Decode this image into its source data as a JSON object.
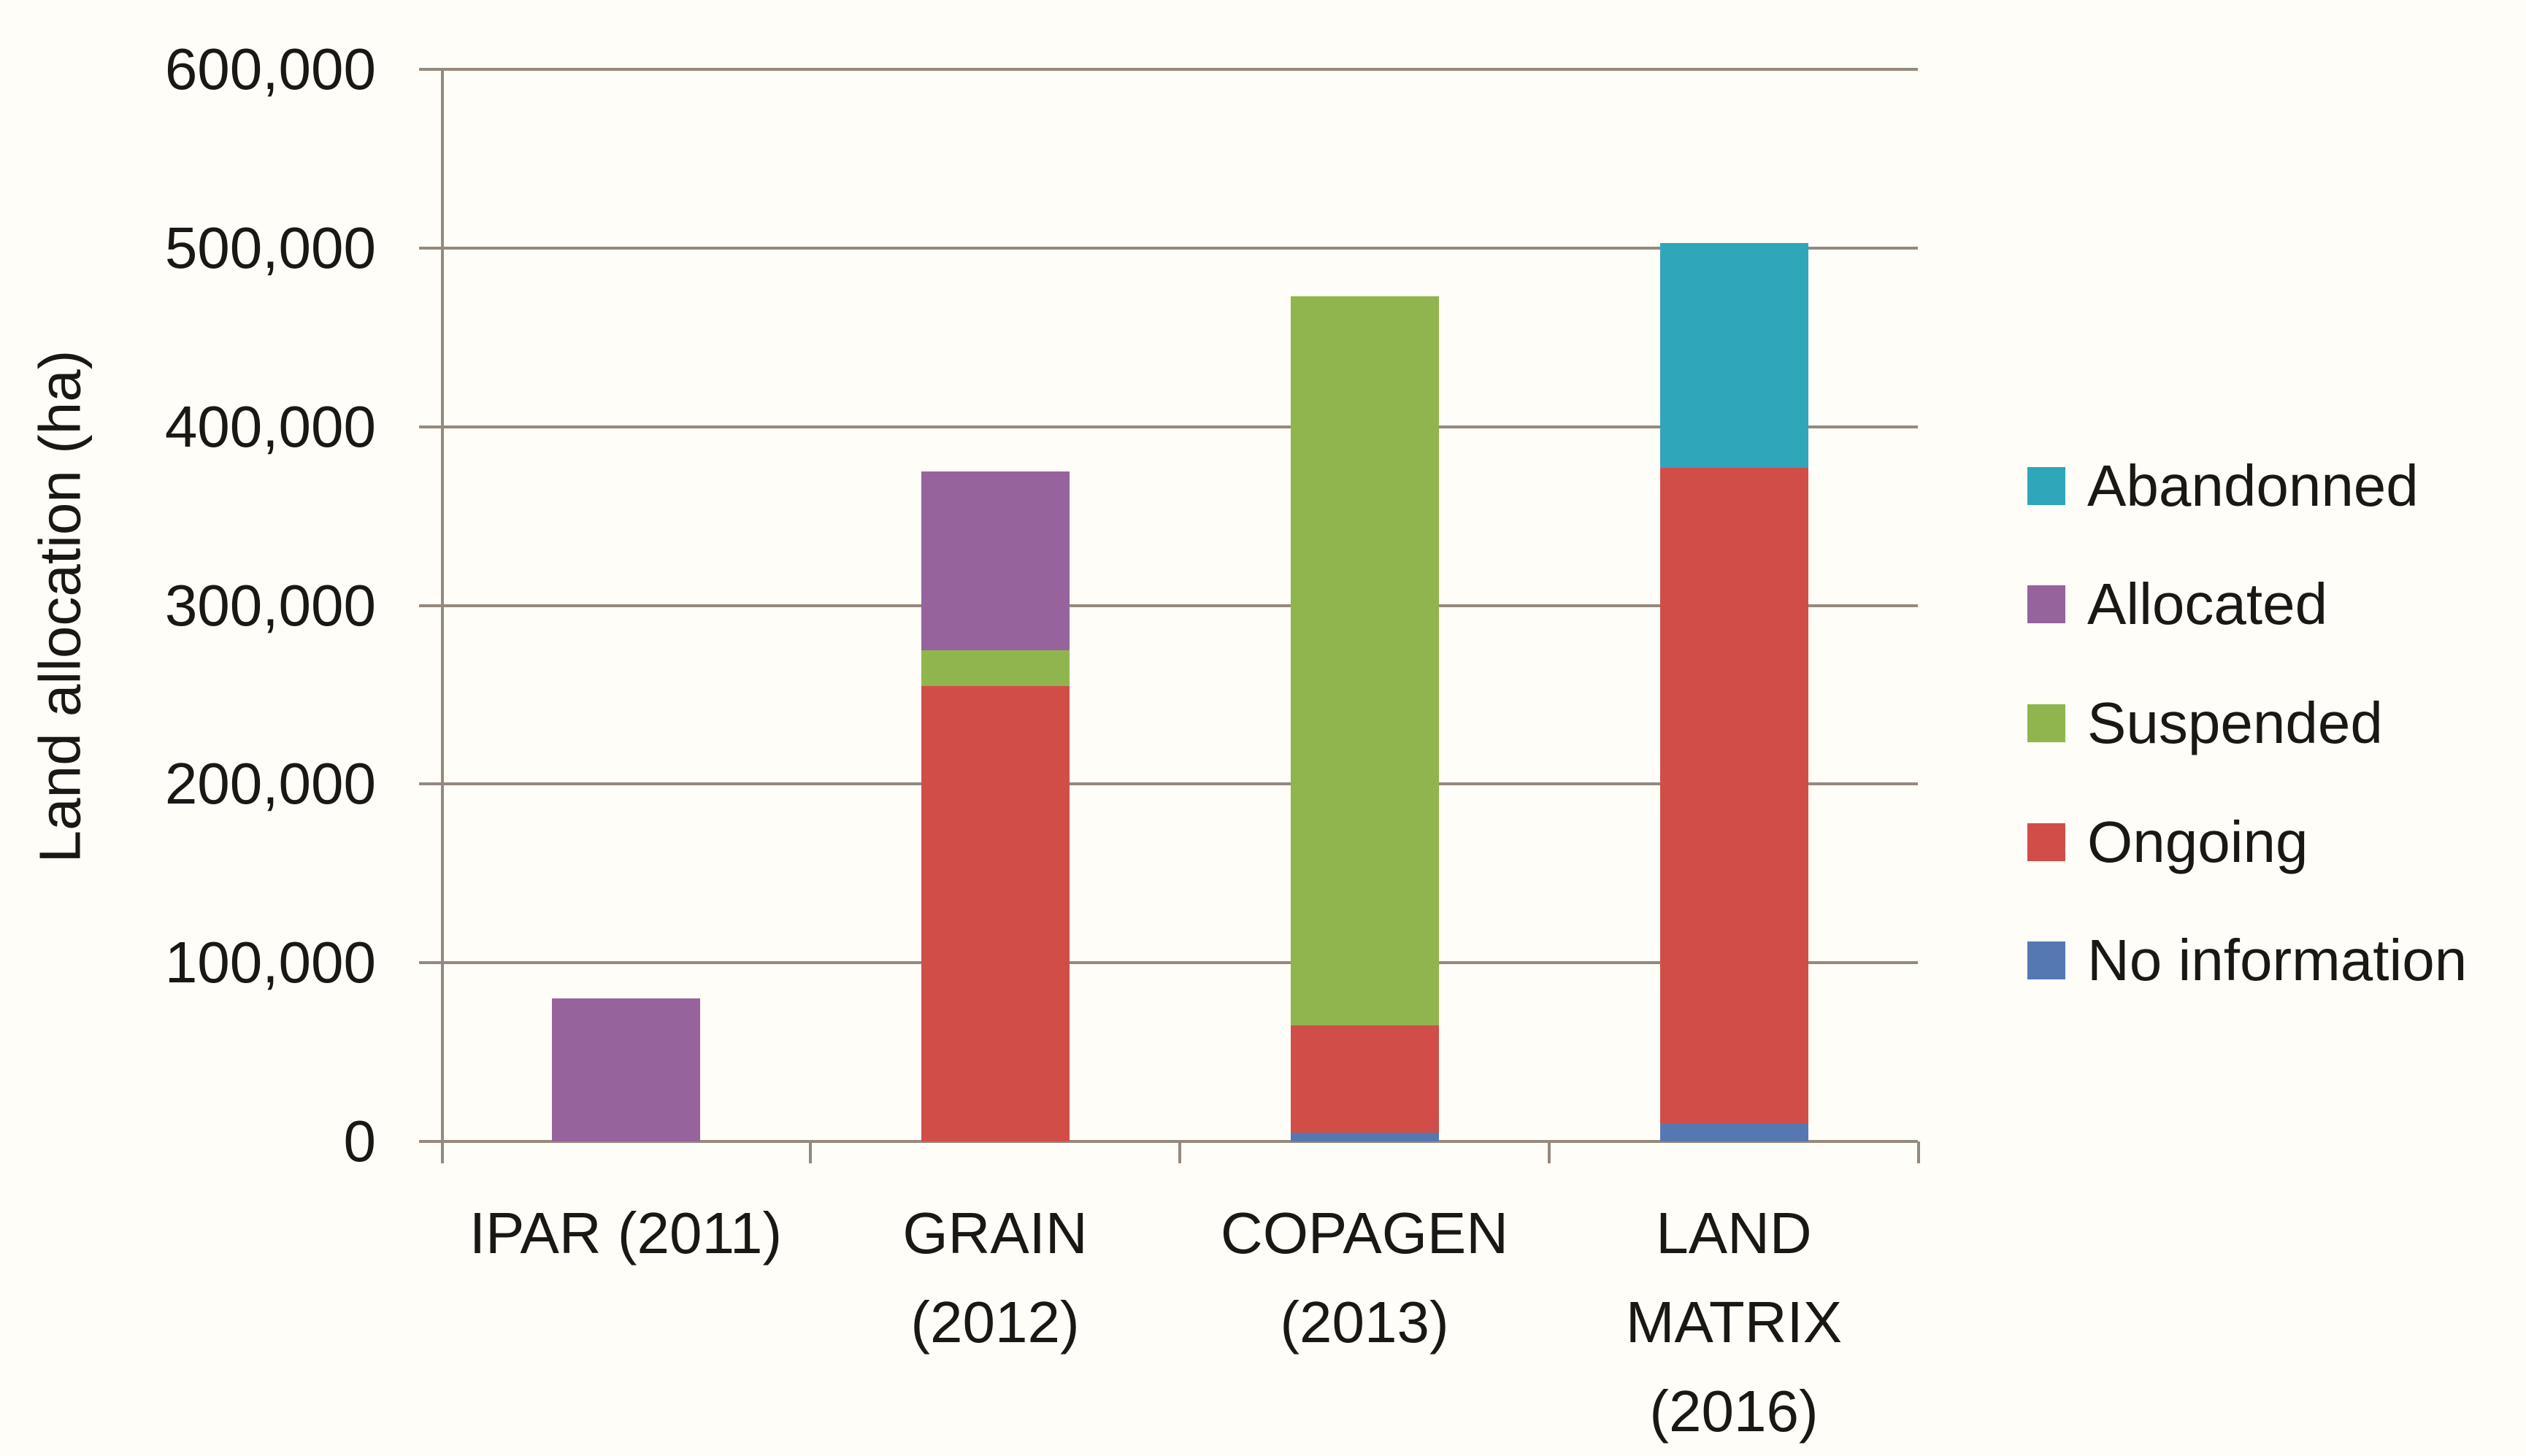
{
  "chart_data": {
    "type": "bar",
    "stacked": true,
    "orientation": "vertical",
    "title": "",
    "xlabel": "",
    "ylabel": "Land allocation (ha)",
    "ylim": [
      0,
      600000
    ],
    "ytick_interval": 100000,
    "ytick_labels_top_to_bottom": [
      "600,000",
      "500,000",
      "400,000",
      "300,000",
      "200,000",
      "100,000",
      "0"
    ],
    "grid": "horizontal",
    "legend_position": "right",
    "categories": [
      "IPAR (2011)",
      "GRAIN (2012)",
      "COPAGEN (2013)",
      "LAND MATRIX (2016)"
    ],
    "category_label_lines": [
      [
        "IPAR (2011)"
      ],
      [
        "GRAIN",
        "(2012)"
      ],
      [
        "COPAGEN",
        "(2013)"
      ],
      [
        "LAND",
        "MATRIX",
        "(2016)"
      ]
    ],
    "series": [
      {
        "name": "No information",
        "color": "#5678B2",
        "values": [
          0,
          0,
          5000,
          10000
        ]
      },
      {
        "name": "Ongoing",
        "color": "#D14E48",
        "values": [
          0,
          255000,
          60000,
          367000
        ]
      },
      {
        "name": "Suspended",
        "color": "#90B54E",
        "values": [
          0,
          20000,
          408000,
          0
        ]
      },
      {
        "name": "Allocated",
        "color": "#96639D",
        "values": [
          80000,
          100000,
          0,
          0
        ]
      },
      {
        "name": "Abandonned",
        "color": "#2FA6B9",
        "values": [
          0,
          0,
          0,
          126000
        ]
      }
    ],
    "stack_order_bottom_to_top": [
      "No information",
      "Ongoing",
      "Suspended",
      "Allocated",
      "Abandonned"
    ],
    "legend_entries_top_to_bottom": [
      "Abandonned",
      "Allocated",
      "Suspended",
      "Ongoing",
      "No information"
    ],
    "bar_totals": [
      80000,
      375000,
      473000,
      503000
    ],
    "axis_color": "#95897D",
    "background_color": "#FFFDF7",
    "text_color": "#1A1714"
  }
}
